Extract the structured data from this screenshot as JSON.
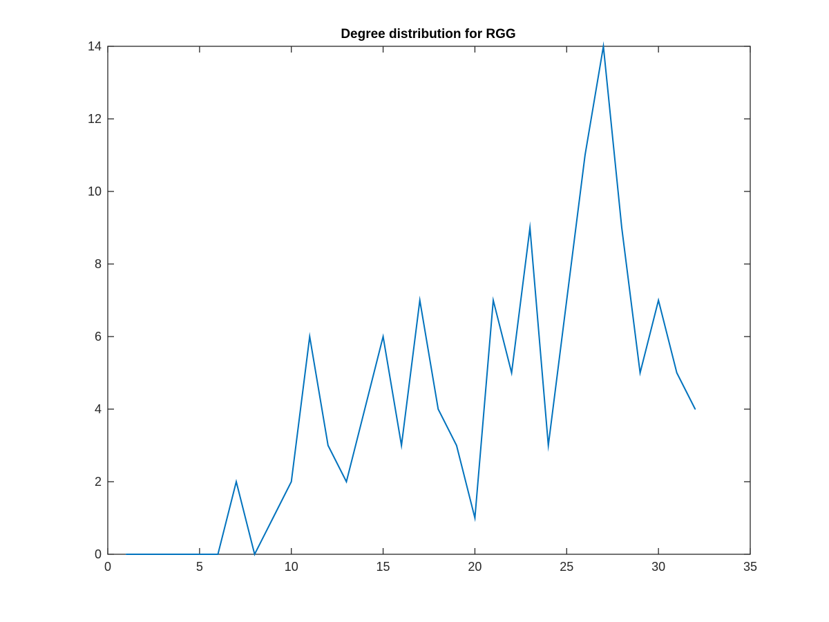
{
  "chart_data": {
    "type": "line",
    "title": "Degree distribution for RGG",
    "xlabel": "",
    "ylabel": "",
    "xlim": [
      0,
      35
    ],
    "ylim": [
      0,
      14
    ],
    "xticks": [
      0,
      5,
      10,
      15,
      20,
      25,
      30,
      35
    ],
    "yticks": [
      0,
      2,
      4,
      6,
      8,
      10,
      12,
      14
    ],
    "grid": false,
    "legend": "none",
    "series": [
      {
        "color": "#0072bd",
        "x": [
          1,
          2,
          3,
          4,
          5,
          6,
          7,
          8,
          9,
          10,
          11,
          12,
          13,
          14,
          15,
          16,
          17,
          18,
          19,
          20,
          21,
          22,
          23,
          24,
          25,
          26,
          27,
          28,
          29,
          30,
          31,
          32
        ],
        "y": [
          0,
          0,
          0,
          0,
          0,
          0,
          2,
          0,
          1,
          2,
          6,
          3,
          2,
          4,
          6,
          3,
          7,
          4,
          3,
          1,
          7,
          5,
          9,
          3,
          7,
          11,
          14,
          9,
          5,
          7,
          5,
          4
        ]
      }
    ]
  }
}
